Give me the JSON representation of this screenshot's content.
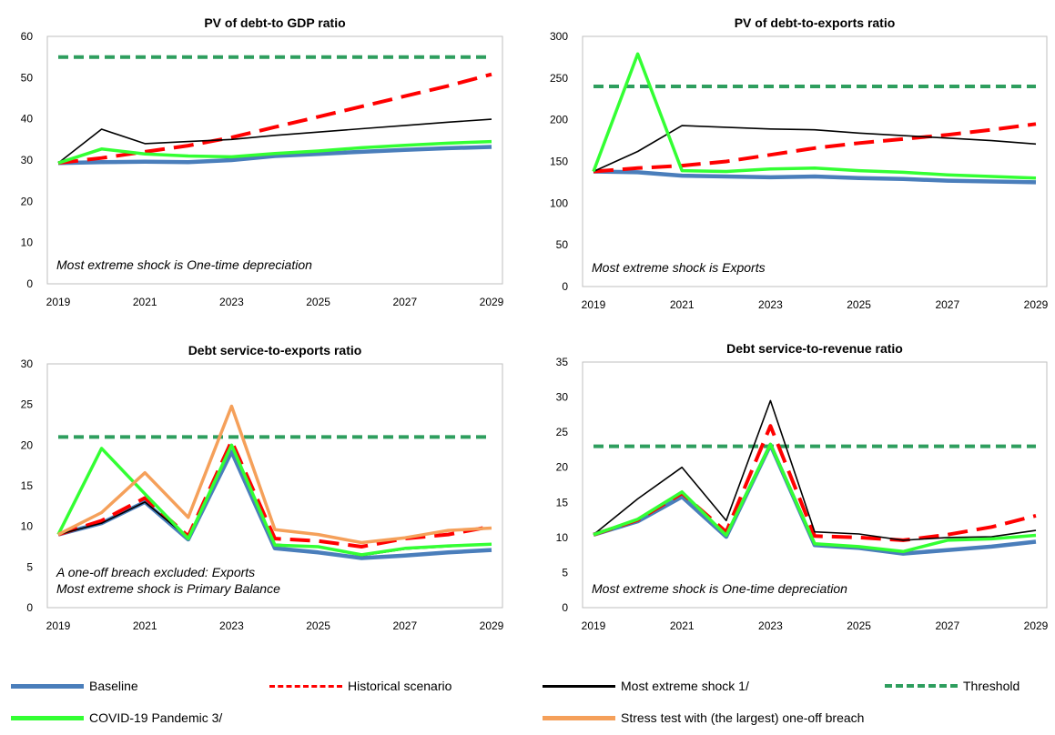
{
  "colors": {
    "baseline": "#4a7ebb",
    "historical": "#ff0000",
    "extreme": "#000000",
    "threshold": "#2e9e5e",
    "covid": "#33ff33",
    "stress": "#f5a05a"
  },
  "legend": {
    "baseline": "Baseline",
    "historical": "Historical scenario",
    "extreme": "Most extreme shock 1/",
    "threshold": "Threshold",
    "covid": "COVID-19 Pandemic 3/",
    "stress": "Stress test with (the largest) one-off breach"
  },
  "chart_data": [
    {
      "type": "line",
      "title": "PV of debt-to GDP ratio",
      "x": [
        2019,
        2020,
        2021,
        2022,
        2023,
        2024,
        2025,
        2026,
        2027,
        2028,
        2029
      ],
      "x_ticks": [
        "2019",
        "2021",
        "2023",
        "2025",
        "2027",
        "2029"
      ],
      "ylim": [
        0,
        60
      ],
      "y_ticks": [
        "0",
        "10",
        "20",
        "30",
        "40",
        "50",
        "60"
      ],
      "note": [
        "Most extreme shock is One-time depreciation"
      ],
      "series": [
        {
          "name": "Baseline",
          "key": "baseline",
          "values": [
            29.3,
            29.5,
            29.6,
            29.5,
            30.0,
            31.0,
            31.5,
            32.0,
            32.5,
            32.9,
            33.2
          ]
        },
        {
          "name": "Historical scenario",
          "key": "historical",
          "values": [
            29.3,
            30.5,
            32.0,
            33.5,
            35.5,
            38.0,
            40.5,
            43.0,
            45.5,
            48.0,
            50.8
          ]
        },
        {
          "name": "Most extreme shock 1/",
          "key": "extreme",
          "values": [
            29.3,
            37.5,
            34.0,
            34.5,
            35.0,
            36.0,
            36.8,
            37.6,
            38.4,
            39.2,
            39.9
          ]
        },
        {
          "name": "Threshold",
          "key": "threshold",
          "values": [
            55,
            55,
            55,
            55,
            55,
            55,
            55,
            55,
            55,
            55,
            55
          ]
        },
        {
          "name": "COVID-19 Pandemic 3/",
          "key": "covid",
          "values": [
            29.3,
            32.7,
            31.5,
            31.0,
            30.8,
            31.6,
            32.2,
            33.0,
            33.6,
            34.1,
            34.5
          ]
        }
      ]
    },
    {
      "type": "line",
      "title": "PV of debt-to-exports ratio",
      "x": [
        2019,
        2020,
        2021,
        2022,
        2023,
        2024,
        2025,
        2026,
        2027,
        2028,
        2029
      ],
      "x_ticks": [
        "2019",
        "2021",
        "2023",
        "2025",
        "2027",
        "2029"
      ],
      "ylim": [
        0,
        300
      ],
      "y_ticks": [
        "0",
        "50",
        "100",
        "150",
        "200",
        "250",
        "300"
      ],
      "note": [
        "Most extreme shock is Exports"
      ],
      "series": [
        {
          "name": "Baseline",
          "key": "baseline",
          "values": [
            138,
            137,
            133,
            132,
            131,
            132,
            130,
            129,
            127,
            126,
            125
          ]
        },
        {
          "name": "Historical scenario",
          "key": "historical",
          "values": [
            138,
            142,
            145,
            150,
            158,
            166,
            172,
            177,
            182,
            188,
            195
          ]
        },
        {
          "name": "Most extreme shock 1/",
          "key": "extreme",
          "values": [
            138,
            162,
            193,
            191,
            189,
            188,
            184,
            181,
            178,
            175,
            171
          ]
        },
        {
          "name": "Threshold",
          "key": "threshold",
          "values": [
            240,
            240,
            240,
            240,
            240,
            240,
            240,
            240,
            240,
            240,
            240
          ]
        },
        {
          "name": "COVID-19 Pandemic 3/",
          "key": "covid",
          "values": [
            138,
            279,
            139,
            138,
            141,
            142,
            139,
            137,
            134,
            132,
            130
          ]
        }
      ]
    },
    {
      "type": "line",
      "title": "Debt service-to-exports ratio",
      "x": [
        2019,
        2020,
        2021,
        2022,
        2023,
        2024,
        2025,
        2026,
        2027,
        2028,
        2029
      ],
      "x_ticks": [
        "2019",
        "2021",
        "2023",
        "2025",
        "2027",
        "2029"
      ],
      "ylim": [
        0,
        30
      ],
      "y_ticks": [
        "0",
        "5",
        "10",
        "15",
        "20",
        "25",
        "30"
      ],
      "note": [
        "A one-off breach excluded: Exports",
        "Most extreme shock is Primary Balance"
      ],
      "series": [
        {
          "name": "Baseline",
          "key": "baseline",
          "values": [
            9.0,
            10.4,
            13.0,
            8.4,
            19.2,
            7.3,
            6.8,
            6.1,
            6.4,
            6.8,
            7.1
          ]
        },
        {
          "name": "Historical scenario",
          "key": "historical",
          "values": [
            9.0,
            10.7,
            13.5,
            8.8,
            20.5,
            8.5,
            8.2,
            7.5,
            8.5,
            9.0,
            10.0
          ]
        },
        {
          "name": "Most extreme shock 1/",
          "key": "extreme",
          "values": [
            9.0,
            10.4,
            13.0,
            8.6,
            19.8,
            7.8,
            7.5,
            6.4,
            7.2,
            7.5,
            7.8
          ]
        },
        {
          "name": "Threshold",
          "key": "threshold",
          "values": [
            21,
            21,
            21,
            21,
            21,
            21,
            21,
            21,
            21,
            21,
            21
          ]
        },
        {
          "name": "COVID-19 Pandemic 3/",
          "key": "covid",
          "values": [
            9.0,
            19.6,
            14.0,
            8.5,
            20.0,
            7.7,
            7.5,
            6.5,
            7.3,
            7.6,
            7.8
          ]
        },
        {
          "name": "Stress test with (the largest) one-off breach",
          "key": "stress",
          "values": [
            9.0,
            11.7,
            16.6,
            11.1,
            24.8,
            9.6,
            9.0,
            8.0,
            8.6,
            9.5,
            9.8
          ]
        }
      ]
    },
    {
      "type": "line",
      "title": "Debt service-to-revenue ratio",
      "x": [
        2019,
        2020,
        2021,
        2022,
        2023,
        2024,
        2025,
        2026,
        2027,
        2028,
        2029
      ],
      "x_ticks": [
        "2019",
        "2021",
        "2023",
        "2025",
        "2027",
        "2029"
      ],
      "ylim": [
        0,
        35
      ],
      "y_ticks": [
        "0",
        "5",
        "10",
        "15",
        "20",
        "25",
        "30",
        "35"
      ],
      "note": [
        "Most extreme shock is One-time depreciation"
      ],
      "series": [
        {
          "name": "Baseline",
          "key": "baseline",
          "values": [
            10.4,
            12.3,
            15.8,
            10.1,
            23.2,
            8.9,
            8.5,
            7.7,
            8.2,
            8.7,
            9.4
          ]
        },
        {
          "name": "Historical scenario",
          "key": "historical",
          "values": [
            10.4,
            12.5,
            16.3,
            10.8,
            25.9,
            10.2,
            10.0,
            9.6,
            10.4,
            11.5,
            13.1
          ]
        },
        {
          "name": "Most extreme shock 1/",
          "key": "extreme",
          "values": [
            10.4,
            15.5,
            20.0,
            12.4,
            29.5,
            10.8,
            10.5,
            9.6,
            10.0,
            10.1,
            11.0
          ]
        },
        {
          "name": "Threshold",
          "key": "threshold",
          "values": [
            23,
            23,
            23,
            23,
            23,
            23,
            23,
            23,
            23,
            23,
            23
          ]
        },
        {
          "name": "COVID-19 Pandemic 3/",
          "key": "covid",
          "values": [
            10.4,
            12.6,
            16.5,
            10.3,
            23.3,
            9.1,
            8.7,
            8.0,
            9.6,
            9.8,
            10.3
          ]
        }
      ]
    }
  ]
}
